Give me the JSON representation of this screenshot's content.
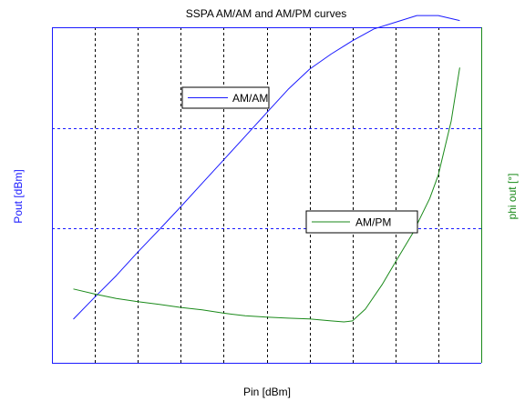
{
  "chart_data": {
    "type": "line",
    "title": "SSPA AM/AM and AM/PM curves",
    "xlabel": "Pin [dBm]",
    "ylabel_left": "Pout [dBm]",
    "ylabel_right": "phi out [°]",
    "xlim": [
      0,
      10
    ],
    "ylim_left": [
      0,
      10
    ],
    "ylim_right": [
      0,
      10
    ],
    "x_grid": [
      1,
      2,
      3,
      4,
      5,
      6,
      7,
      8,
      9
    ],
    "y_grid_left": [
      4,
      7
    ],
    "colors": {
      "axes": "#1a1aff",
      "right_axis": "#1a8a1a",
      "am_am": "#1a1aff",
      "am_pm": "#1a8a1a",
      "grid_x": "#000000",
      "grid_y": "#1a1aff"
    },
    "series": [
      {
        "name": "AM/AM",
        "axis": "left",
        "x": [
          0.5,
          1.0,
          1.5,
          2.0,
          2.5,
          3.0,
          3.5,
          4.0,
          4.5,
          5.0,
          5.5,
          6.0,
          6.5,
          7.0,
          7.5,
          8.0,
          8.5,
          9.0,
          9.5
        ],
        "y": [
          1.3,
          1.96,
          2.6,
          3.3,
          3.97,
          4.65,
          5.35,
          6.05,
          6.75,
          7.45,
          8.15,
          8.75,
          9.2,
          9.6,
          9.95,
          10.15,
          10.35,
          10.35,
          10.2
        ]
      },
      {
        "name": "AM/PM",
        "axis": "right",
        "x": [
          0.5,
          1.0,
          1.5,
          2.0,
          2.5,
          3.0,
          3.5,
          4.0,
          4.5,
          5.0,
          5.5,
          6.0,
          6.5,
          6.8,
          7.0,
          7.3,
          7.7,
          8.0,
          8.4,
          8.8,
          9.0,
          9.3,
          9.5
        ],
        "y": [
          2.2,
          2.05,
          1.92,
          1.82,
          1.74,
          1.65,
          1.58,
          1.48,
          1.4,
          1.36,
          1.33,
          1.31,
          1.25,
          1.22,
          1.25,
          1.6,
          2.35,
          3.0,
          3.85,
          4.9,
          5.6,
          7.2,
          8.8
        ]
      }
    ]
  }
}
